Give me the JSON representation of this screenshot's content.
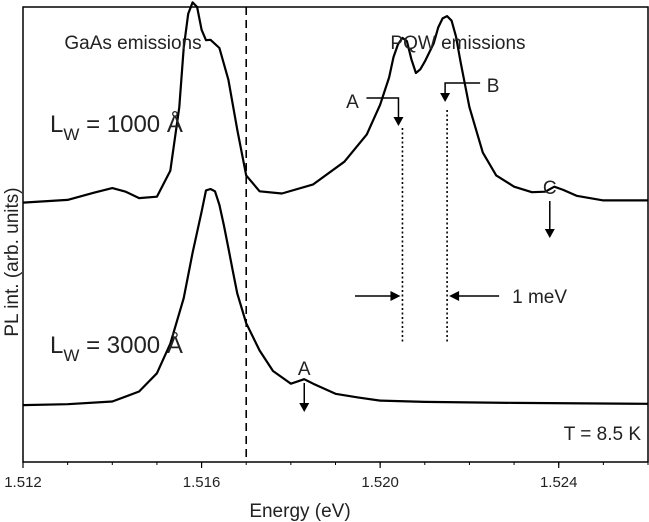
{
  "chart_data": {
    "type": "line",
    "title": "",
    "xlabel": "Energy (eV)",
    "ylabel": "PL int. (arb. units)",
    "xlim": [
      1.512,
      1.526
    ],
    "xticks": [
      {
        "value": 1.512,
        "label": "1.512"
      },
      {
        "value": 1.516,
        "label": "1.516"
      },
      {
        "value": 1.52,
        "label": "1.520"
      },
      {
        "value": 1.524,
        "label": "1.524"
      }
    ],
    "ylim": [
      0,
      10
    ],
    "grid": false,
    "series": [
      {
        "label_main": "L",
        "label_sub": "W",
        "label_rest": " = 1000 Å",
        "x": [
          1.512,
          1.513,
          1.5136,
          1.514,
          1.5143,
          1.5146,
          1.515,
          1.5153,
          1.5155,
          1.5156,
          1.5157,
          1.5158,
          1.5159,
          1.516,
          1.5161,
          1.5162,
          1.5164,
          1.5166,
          1.5168,
          1.517,
          1.5173,
          1.5178,
          1.5185,
          1.5192,
          1.5197,
          1.52,
          1.5202,
          1.5203,
          1.5204,
          1.5205,
          1.5206,
          1.5207,
          1.5208,
          1.5209,
          1.521,
          1.5212,
          1.5213,
          1.5214,
          1.5215,
          1.5216,
          1.5217,
          1.5218,
          1.522,
          1.5223,
          1.5226,
          1.523,
          1.5234,
          1.5237,
          1.5239,
          1.5241,
          1.5244,
          1.525,
          1.526
        ],
        "y": [
          5.7,
          5.76,
          5.92,
          6.02,
          5.94,
          5.8,
          5.83,
          6.4,
          7.8,
          9.1,
          9.85,
          10.1,
          10.0,
          9.5,
          9.27,
          9.28,
          9.1,
          8.4,
          7.3,
          6.3,
          5.95,
          5.9,
          6.1,
          6.6,
          7.2,
          7.85,
          8.45,
          8.9,
          9.18,
          9.32,
          9.25,
          8.85,
          8.55,
          8.63,
          8.8,
          9.2,
          9.55,
          9.75,
          9.8,
          9.7,
          9.35,
          8.8,
          7.8,
          6.8,
          6.3,
          6.05,
          5.93,
          5.94,
          6.05,
          5.98,
          5.85,
          5.75,
          5.75
        ]
      },
      {
        "label_main": "L",
        "label_sub": "W",
        "label_rest": " = 3000 Å",
        "x": [
          1.512,
          1.513,
          1.514,
          1.5146,
          1.515,
          1.5153,
          1.5156,
          1.5158,
          1.516,
          1.5161,
          1.5162,
          1.5163,
          1.5164,
          1.5165,
          1.5166,
          1.5167,
          1.5168,
          1.517,
          1.5173,
          1.5176,
          1.518,
          1.5183,
          1.5185,
          1.519,
          1.5195,
          1.52,
          1.521,
          1.523,
          1.526
        ],
        "y": [
          1.25,
          1.27,
          1.33,
          1.55,
          1.95,
          2.6,
          3.6,
          4.6,
          5.5,
          5.97,
          6.0,
          5.95,
          5.65,
          5.2,
          4.7,
          4.2,
          3.7,
          3.05,
          2.45,
          2.0,
          1.72,
          1.82,
          1.72,
          1.5,
          1.42,
          1.35,
          1.32,
          1.3,
          1.28
        ]
      }
    ],
    "region_labels": {
      "left": "GaAs emissions",
      "right": "PQW emissions"
    },
    "separator_x": 1.517,
    "peak_labels": [
      {
        "label": "A",
        "x": 1.5205,
        "series": 0
      },
      {
        "label": "B",
        "x": 1.5215,
        "series": 0
      },
      {
        "label": "C",
        "x": 1.5238,
        "series": 0
      },
      {
        "label": "A",
        "x": 1.5183,
        "series": 1
      }
    ],
    "splitting": {
      "label": "1 meV",
      "x1": 1.5205,
      "x2": 1.5215
    },
    "temperature": "T = 8.5 K"
  }
}
